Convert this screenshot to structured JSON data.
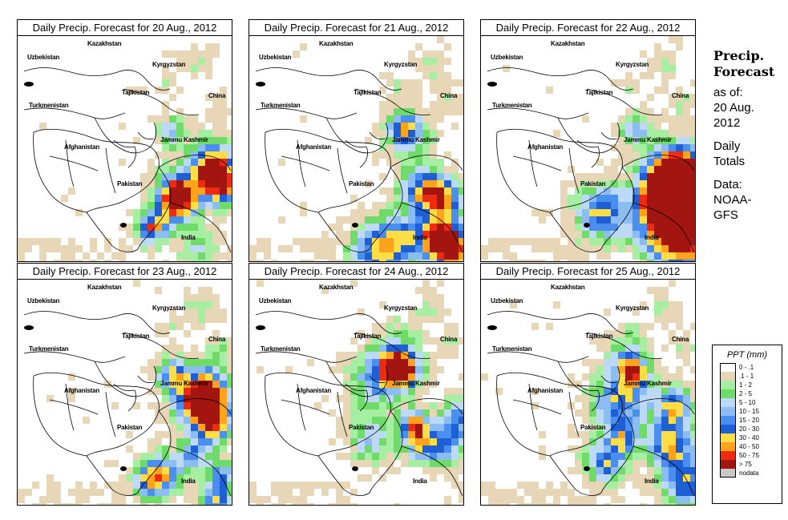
{
  "panels": [
    {
      "title": "Daily Precip. Forecast for  20 Aug., 2012",
      "seed": 11,
      "intensity": 0.9
    },
    {
      "title": "Daily Precip. Forecast for  21 Aug., 2012",
      "seed": 23,
      "intensity": 1.05
    },
    {
      "title": "Daily Precip. Forecast for  22 Aug., 2012",
      "seed": 37,
      "intensity": 1.0
    },
    {
      "title": "Daily Precip. Forecast for  23 Aug., 2012",
      "seed": 41,
      "intensity": 1.1
    },
    {
      "title": "Daily Precip. Forecast for  24 Aug., 2012",
      "seed": 53,
      "intensity": 0.95
    },
    {
      "title": "Daily Precip. Forecast for  25 Aug., 2012",
      "seed": 67,
      "intensity": 1.05
    }
  ],
  "map_labels": {
    "kazakhstan": "Kazakhstan",
    "uzbekistan": "Uzbekistan",
    "kyrgyzstan": "Kyrgyzstan",
    "tajikistan": "Tajikistan",
    "turkmenistan": "Turkmenistan",
    "china": "China",
    "afghanistan": "Afghanistan",
    "jammu_kashmir": "Jammu Kashmir",
    "pakistan": "Pakistan",
    "india": "India"
  },
  "side": {
    "title_line1": "Precip.",
    "title_line2": "Forecast",
    "asof_line1": "as of:",
    "asof_line2": "20 Aug.",
    "asof_line3": "2012",
    "totals_line1": "Daily",
    "totals_line2": "Totals",
    "data_line1": "Data:",
    "data_line2": "NOAA-",
    "data_line3": "GFS"
  },
  "legend": {
    "title": "PPT (mm)",
    "classes": [
      {
        "label": "0 - .1",
        "color": "#ffffff"
      },
      {
        "label": ".1 - 1",
        "color": "#e8d7b6"
      },
      {
        "label": "1 - 2",
        "color": "#a6eea2"
      },
      {
        "label": "2 - 5",
        "color": "#6fdc6a"
      },
      {
        "label": "5 - 10",
        "color": "#bcd9f6"
      },
      {
        "label": "10 - 15",
        "color": "#8bbcf2"
      },
      {
        "label": "15 - 20",
        "color": "#4a8ff0"
      },
      {
        "label": "20 - 30",
        "color": "#1f5fd6"
      },
      {
        "label": "30 - 40",
        "color": "#ffdd44"
      },
      {
        "label": "40 - 50",
        "color": "#ffa31a"
      },
      {
        "label": "50 - 75",
        "color": "#ee2a10"
      },
      {
        "label": "> 75",
        "color": "#a31510"
      },
      {
        "label": "nodata",
        "color": "#c8c8c8"
      }
    ]
  }
}
